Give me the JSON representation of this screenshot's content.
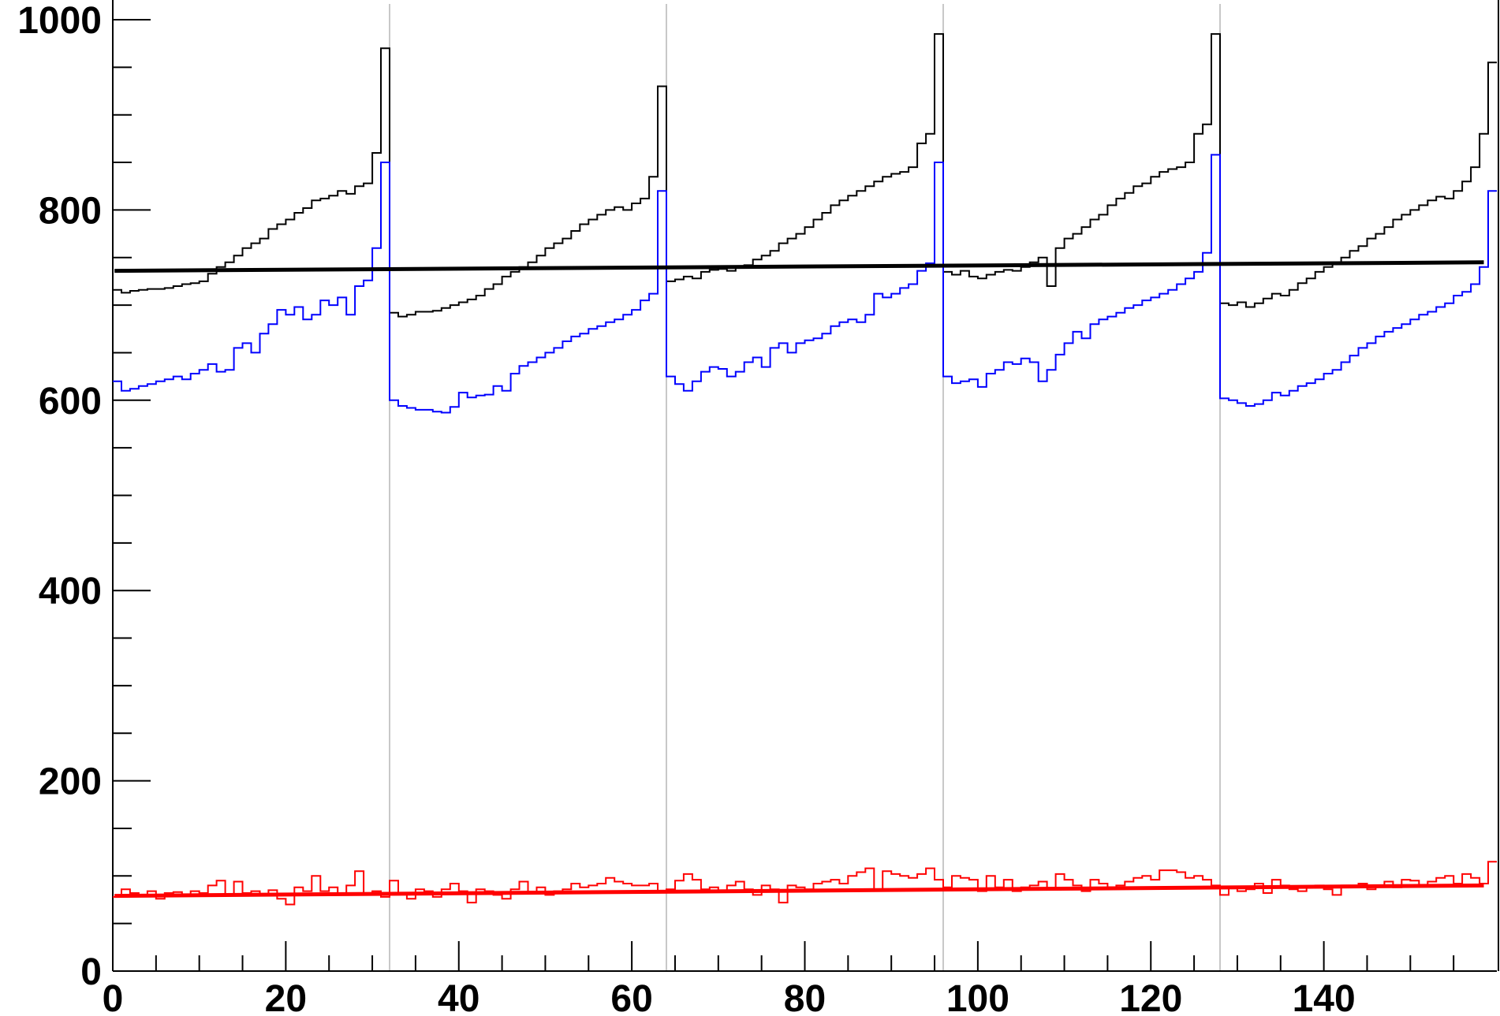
{
  "chart_data": {
    "type": "line",
    "title": "",
    "xlabel": "",
    "ylabel": "",
    "xlim": [
      0,
      160
    ],
    "ylim": [
      0,
      1000
    ],
    "x_ticks": [
      0,
      20,
      40,
      60,
      80,
      100,
      120,
      140
    ],
    "x_tick_labels": [
      "0",
      "20",
      "40",
      "60",
      "80",
      "100",
      "120",
      "140"
    ],
    "y_ticks": [
      0,
      200,
      400,
      600,
      800,
      1000
    ],
    "y_tick_labels": [
      "0",
      "200",
      "400",
      "600",
      "800",
      "1000"
    ],
    "grid_x": [
      32,
      64,
      96,
      128
    ],
    "grid": "vertical lines at module boundaries",
    "legend": "none",
    "series": [
      {
        "kind": "step",
        "color": "#000000",
        "segments": [
          {
            "x_start": 0,
            "x_end": 32,
            "values": [
              716,
              713,
              715,
              716,
              717,
              717,
              718,
              720,
              722,
              723,
              725,
              733,
              740,
              745,
              752,
              760,
              765,
              770,
              780,
              785,
              790,
              797,
              802,
              810,
              812,
              815,
              820,
              817,
              825,
              828,
              860,
              970
            ]
          },
          {
            "x_start": 32,
            "x_end": 64,
            "values": [
              692,
              688,
              690,
              693,
              693,
              694,
              697,
              700,
              703,
              706,
              710,
              717,
              722,
              730,
              735,
              740,
              745,
              752,
              760,
              765,
              770,
              778,
              785,
              790,
              795,
              800,
              803,
              800,
              807,
              812,
              835,
              930
            ]
          },
          {
            "x_start": 64,
            "x_end": 96,
            "values": [
              725,
              727,
              730,
              728,
              735,
              737,
              738,
              736,
              740,
              742,
              748,
              752,
              757,
              765,
              770,
              775,
              782,
              790,
              797,
              805,
              810,
              815,
              820,
              825,
              830,
              835,
              838,
              840,
              845,
              870,
              880,
              985
            ]
          },
          {
            "x_start": 96,
            "x_end": 128,
            "values": [
              735,
              732,
              736,
              730,
              728,
              732,
              735,
              737,
              736,
              740,
              745,
              750,
              720,
              760,
              770,
              775,
              782,
              790,
              795,
              805,
              812,
              818,
              825,
              828,
              835,
              840,
              843,
              845,
              850,
              880,
              890,
              985
            ]
          },
          {
            "x_start": 128,
            "x_end": 160,
            "values": [
              702,
              700,
              703,
              698,
              702,
              707,
              712,
              710,
              716,
              723,
              728,
              735,
              740,
              745,
              750,
              757,
              762,
              770,
              775,
              782,
              790,
              795,
              800,
              805,
              810,
              814,
              812,
              820,
              830,
              845,
              880,
              955
            ]
          }
        ]
      },
      {
        "kind": "step",
        "color": "#0000ff",
        "segments": [
          {
            "x_start": 0,
            "x_end": 32,
            "values": [
              620,
              610,
              612,
              615,
              617,
              620,
              622,
              625,
              622,
              628,
              632,
              638,
              630,
              632,
              655,
              660,
              650,
              670,
              680,
              695,
              690,
              698,
              685,
              690,
              705,
              700,
              708,
              690,
              720,
              726,
              760,
              850
            ]
          },
          {
            "x_start": 32,
            "x_end": 64,
            "values": [
              600,
              594,
              592,
              590,
              590,
              588,
              587,
              593,
              608,
              603,
              605,
              606,
              615,
              610,
              628,
              636,
              640,
              645,
              650,
              655,
              662,
              667,
              670,
              675,
              678,
              682,
              685,
              690,
              695,
              705,
              712,
              820
            ]
          },
          {
            "x_start": 64,
            "x_end": 96,
            "values": [
              625,
              617,
              610,
              620,
              630,
              635,
              633,
              625,
              630,
              640,
              645,
              635,
              655,
              660,
              650,
              660,
              663,
              665,
              670,
              678,
              682,
              685,
              682,
              690,
              712,
              708,
              712,
              718,
              722,
              736,
              744,
              850
            ]
          },
          {
            "x_start": 96,
            "x_end": 128,
            "values": [
              625,
              618,
              620,
              622,
              614,
              628,
              632,
              640,
              638,
              644,
              640,
              620,
              632,
              648,
              660,
              672,
              665,
              680,
              685,
              688,
              692,
              697,
              700,
              705,
              708,
              712,
              716,
              722,
              728,
              735,
              755,
              858
            ]
          },
          {
            "x_start": 128,
            "x_end": 160,
            "values": [
              602,
              600,
              597,
              594,
              596,
              600,
              608,
              605,
              610,
              615,
              618,
              622,
              628,
              632,
              640,
              647,
              655,
              660,
              667,
              672,
              676,
              680,
              685,
              690,
              693,
              698,
              702,
              710,
              714,
              722,
              740,
              820
            ]
          }
        ]
      },
      {
        "kind": "step",
        "color": "#ff0000",
        "segments": [
          {
            "x_start": 0,
            "x_end": 32,
            "values": [
              78,
              86,
              82,
              80,
              84,
              76,
              82,
              83,
              80,
              84,
              82,
              90,
              95,
              80,
              94,
              82,
              84,
              80,
              85,
              76,
              70,
              88,
              84,
              100,
              84,
              88,
              82,
              90,
              105,
              80,
              84,
              78
            ]
          },
          {
            "x_start": 32,
            "x_end": 64,
            "values": [
              95,
              82,
              76,
              86,
              84,
              78,
              86,
              92,
              84,
              72,
              86,
              84,
              80,
              76,
              86,
              94,
              82,
              88,
              80,
              84,
              86,
              92,
              88,
              90,
              92,
              98,
              94,
              92,
              90,
              90,
              92,
              84
            ]
          },
          {
            "x_start": 64,
            "x_end": 96,
            "values": [
              86,
              95,
              102,
              96,
              86,
              88,
              84,
              90,
              94,
              86,
              80,
              90,
              86,
              72,
              90,
              88,
              86,
              92,
              94,
              96,
              92,
              100,
              104,
              108,
              86,
              105,
              102,
              100,
              98,
              102,
              108,
              96
            ]
          },
          {
            "x_start": 96,
            "x_end": 128,
            "values": [
              88,
              100,
              98,
              96,
              84,
              100,
              88,
              96,
              84,
              88,
              90,
              94,
              86,
              102,
              96,
              90,
              84,
              96,
              92,
              88,
              90,
              94,
              98,
              100,
              96,
              106,
              106,
              104,
              98,
              100,
              96,
              90
            ]
          },
          {
            "x_start": 128,
            "x_end": 160,
            "values": [
              80,
              88,
              84,
              86,
              92,
              82,
              96,
              90,
              86,
              84,
              88,
              90,
              86,
              80,
              90,
              88,
              92,
              86,
              90,
              94,
              88,
              96,
              95,
              90,
              94,
              98,
              100,
              92,
              102,
              98,
              92,
              115
            ]
          }
        ]
      },
      {
        "kind": "fit",
        "color": "#000000",
        "x": [
          0.2,
          158.5
        ],
        "values": [
          736,
          745
        ]
      },
      {
        "kind": "fit",
        "color": "#ff0000",
        "x": [
          0.2,
          158.5
        ],
        "values": [
          79,
          90
        ]
      }
    ]
  }
}
